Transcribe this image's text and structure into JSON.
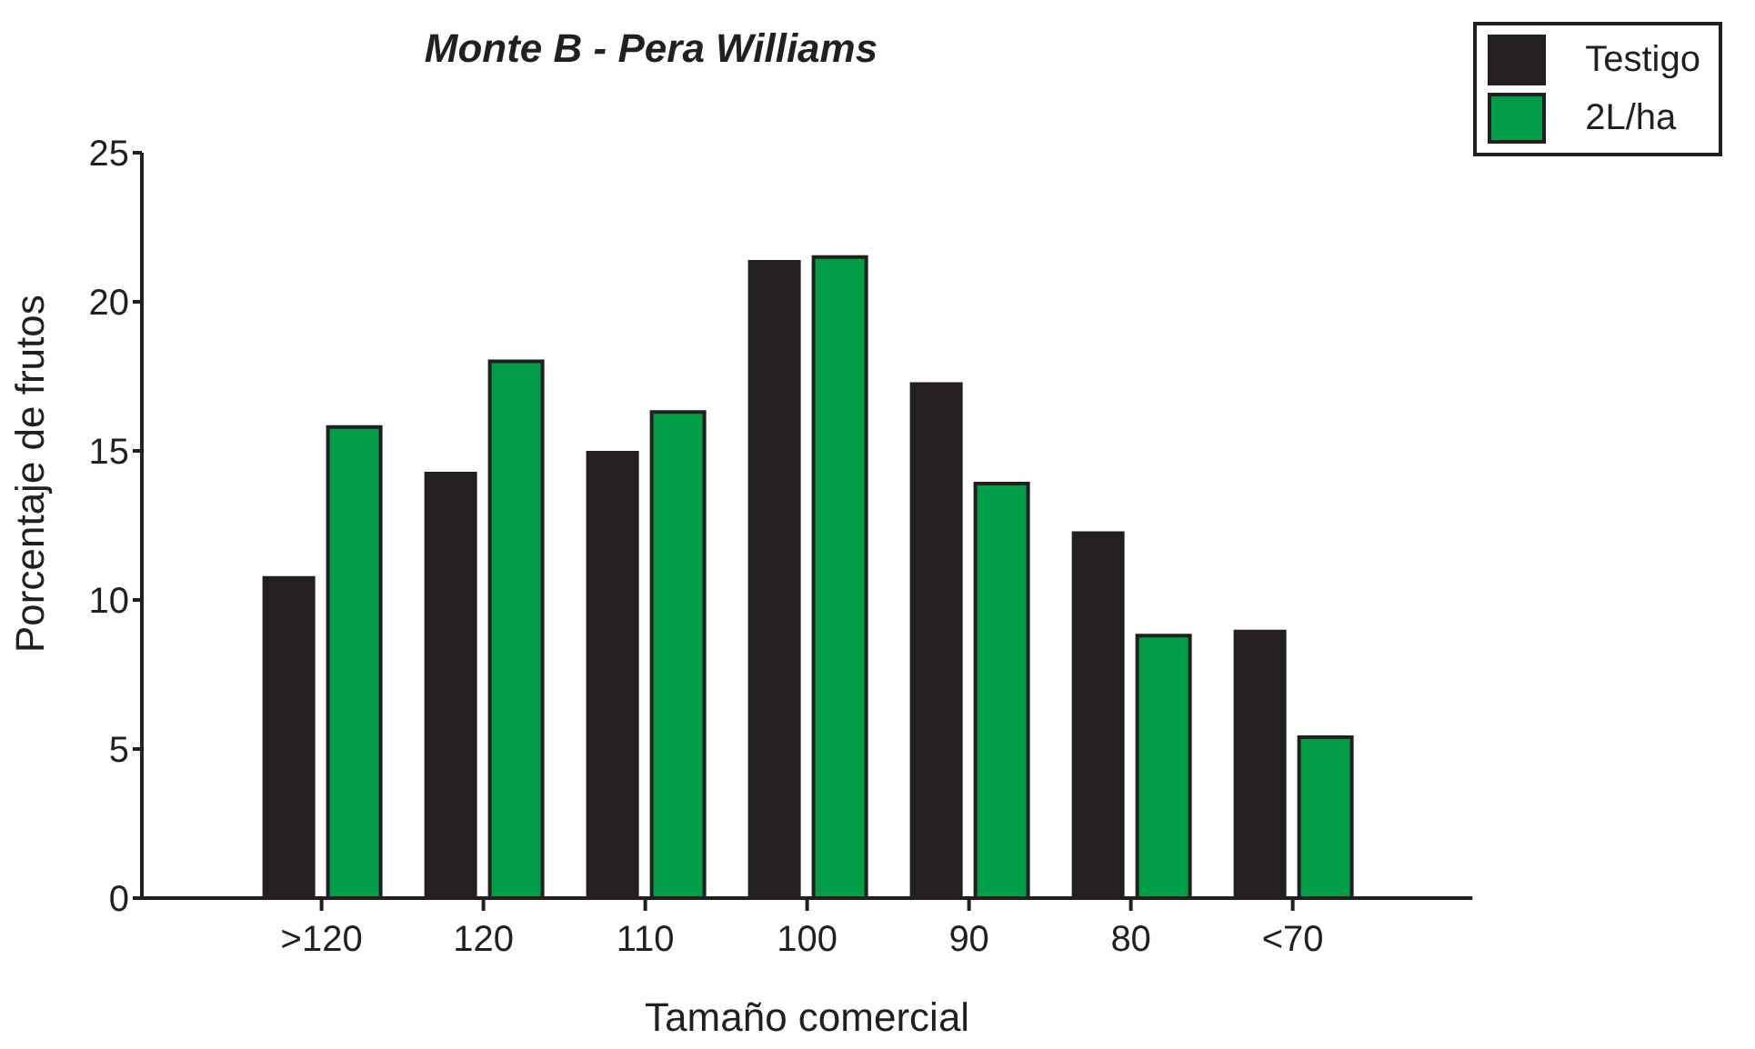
{
  "chart_data": {
    "type": "bar",
    "title": "Monte B - Pera Williams",
    "xlabel": "Tamaño comercial",
    "ylabel": "Porcentaje de frutos",
    "categories": [
      ">120",
      "120",
      "110",
      "100",
      "90",
      "80",
      "<70"
    ],
    "series": [
      {
        "name": "Testigo",
        "color": "#231f20",
        "values": [
          10.8,
          14.3,
          15.0,
          21.4,
          17.3,
          12.3,
          9.0
        ]
      },
      {
        "name": "2L/ha",
        "color": "#009e47",
        "values": [
          15.8,
          18.0,
          16.3,
          21.5,
          13.9,
          8.8,
          5.4
        ]
      }
    ],
    "ylim": [
      0,
      25
    ],
    "yticks": [
      0,
      5,
      10,
      15,
      20,
      25
    ],
    "grid": false,
    "legend": "top right"
  }
}
